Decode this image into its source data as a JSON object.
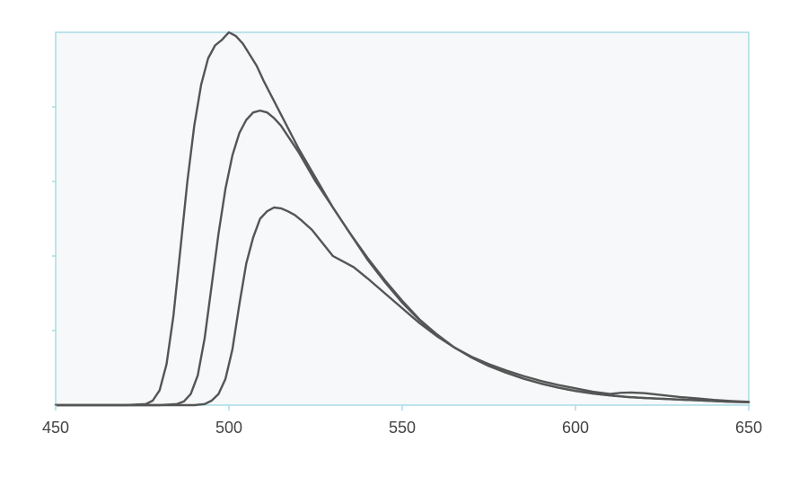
{
  "chart_data": {
    "type": "line",
    "title": "",
    "xlabel": "",
    "ylabel": "",
    "xlim": [
      450,
      650
    ],
    "ylim": [
      0,
      1.0
    ],
    "x_ticks": [
      450,
      500,
      550,
      600,
      650
    ],
    "x_tick_labels": [
      "450",
      "500",
      "550",
      "600",
      "650"
    ],
    "y_ticks": [
      0.2,
      0.4,
      0.6,
      0.8
    ],
    "show_y_tick_labels": false,
    "grid": false,
    "colors": {
      "plot_background": "#f6f8f9",
      "plot_border": "#a8dce8",
      "series_line": "#555555",
      "tick_mark": "#a8dce8"
    },
    "series": [
      {
        "x": [
          450,
          460,
          470,
          476,
          478,
          480,
          482,
          484,
          486,
          488,
          490,
          492,
          494,
          496,
          498,
          499,
          500,
          502,
          504,
          506,
          508,
          510,
          515,
          520,
          525,
          530,
          535,
          540,
          545,
          550,
          555,
          560,
          565,
          570,
          575,
          580,
          585,
          590,
          595,
          600,
          605,
          610,
          615,
          620,
          625,
          630,
          635,
          640,
          645,
          650
        ],
        "y": [
          0,
          0,
          0,
          0.003,
          0.012,
          0.04,
          0.11,
          0.24,
          0.42,
          0.6,
          0.75,
          0.86,
          0.93,
          0.965,
          0.98,
          0.99,
          1.0,
          0.99,
          0.97,
          0.94,
          0.91,
          0.87,
          0.78,
          0.69,
          0.61,
          0.53,
          0.46,
          0.39,
          0.33,
          0.275,
          0.228,
          0.188,
          0.155,
          0.128,
          0.105,
          0.087,
          0.071,
          0.058,
          0.047,
          0.038,
          0.031,
          0.026,
          0.022,
          0.019,
          0.017,
          0.015,
          0.013,
          0.011,
          0.009,
          0.008
        ]
      },
      {
        "x": [
          450,
          460,
          470,
          480,
          485,
          487,
          489,
          491,
          493,
          495,
          497,
          499,
          501,
          503,
          505,
          507,
          509,
          511,
          513,
          515,
          520,
          525,
          530,
          535,
          540,
          545,
          550,
          555,
          560,
          565,
          570,
          575,
          580,
          585,
          590,
          595,
          600,
          605,
          610,
          615,
          620,
          625,
          630,
          635,
          640,
          645,
          650
        ],
        "y": [
          0,
          0,
          0,
          0,
          0.003,
          0.01,
          0.03,
          0.08,
          0.18,
          0.32,
          0.46,
          0.58,
          0.67,
          0.73,
          0.765,
          0.785,
          0.79,
          0.785,
          0.77,
          0.75,
          0.68,
          0.6,
          0.53,
          0.46,
          0.395,
          0.335,
          0.28,
          0.23,
          0.19,
          0.155,
          0.128,
          0.105,
          0.087,
          0.071,
          0.058,
          0.047,
          0.038,
          0.031,
          0.026,
          0.022,
          0.019,
          0.017,
          0.015,
          0.013,
          0.011,
          0.009,
          0.008
        ]
      },
      {
        "x": [
          450,
          460,
          470,
          480,
          490,
          493,
          495,
          497,
          499,
          501,
          503,
          505,
          507,
          509,
          511,
          513,
          515,
          517,
          519,
          521,
          524,
          527,
          530,
          533,
          536,
          540,
          545,
          550,
          555,
          560,
          565,
          570,
          575,
          580,
          585,
          590,
          595,
          600,
          605,
          610,
          613,
          616,
          620,
          625,
          630,
          635,
          640,
          645,
          650
        ],
        "y": [
          0,
          0,
          0,
          0,
          0,
          0.003,
          0.012,
          0.03,
          0.07,
          0.15,
          0.27,
          0.38,
          0.45,
          0.5,
          0.52,
          0.53,
          0.528,
          0.52,
          0.51,
          0.495,
          0.47,
          0.435,
          0.4,
          0.385,
          0.37,
          0.34,
          0.3,
          0.26,
          0.22,
          0.185,
          0.155,
          0.13,
          0.11,
          0.093,
          0.078,
          0.065,
          0.054,
          0.045,
          0.036,
          0.03,
          0.033,
          0.034,
          0.032,
          0.027,
          0.022,
          0.018,
          0.014,
          0.011,
          0.009
        ]
      }
    ]
  }
}
